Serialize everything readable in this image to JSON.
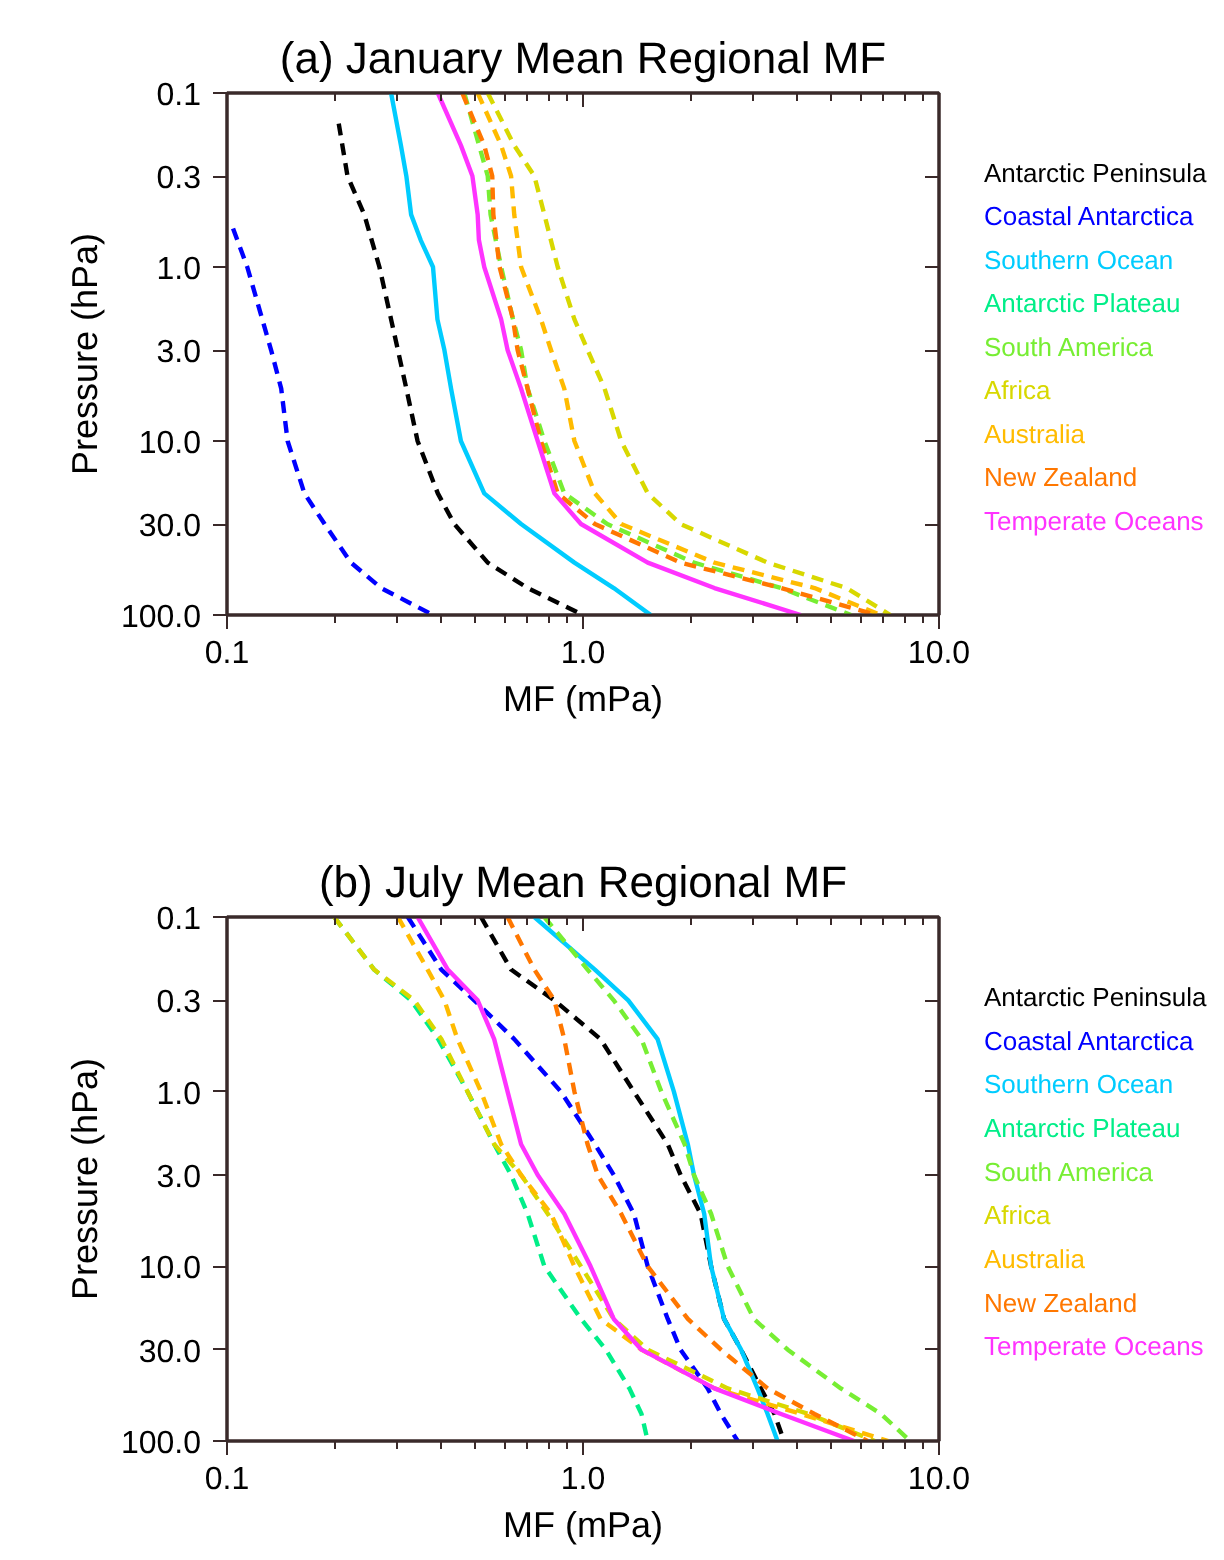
{
  "chart_data": [
    {
      "type": "line",
      "title": "(a) January Mean Regional MF",
      "xlabel": "MF (mPa)",
      "ylabel": "Pressure (hPa)",
      "log": "xy",
      "grid": false,
      "tick_labels": "xy",
      "xlim": [
        0.1,
        10
      ],
      "ylim": [
        100,
        0.1
      ],
      "xticks": [
        {
          "value": 0.1,
          "label": "0.1"
        },
        {
          "value": 1,
          "label": "1.0"
        },
        {
          "value": 10,
          "label": "10.0"
        }
      ],
      "yticks": [
        {
          "value": 0.1,
          "label": "0.1"
        },
        {
          "value": 0.3,
          "label": "0.3"
        },
        {
          "value": 1,
          "label": "1.0"
        },
        {
          "value": 3,
          "label": "3.0"
        },
        {
          "value": 10,
          "label": "10.0"
        },
        {
          "value": 30,
          "label": "30.0"
        },
        {
          "value": 100,
          "label": "100.0"
        }
      ],
      "series": [
        {
          "name": "Antarctic Peninsula",
          "color": "#000000",
          "line_style": "dashed",
          "x": [
            0.206,
            0.218,
            0.243,
            0.268,
            0.289,
            0.302,
            0.319,
            0.343,
            0.391,
            0.435,
            0.54,
            0.699,
            1.0
          ],
          "values": [
            0.15,
            0.3,
            0.5,
            1,
            2,
            3,
            5,
            10,
            20,
            30,
            50,
            70,
            100
          ]
        },
        {
          "name": "Coastal Antarctica",
          "color": "#0000ff",
          "line_style": "dashed",
          "x": [
            0.104,
            0.114,
            0.133,
            0.142,
            0.148,
            0.165,
            0.188,
            0.223,
            0.271,
            0.379
          ],
          "values": [
            0.6,
            1,
            3,
            5,
            10,
            20,
            30,
            50,
            70,
            100
          ]
        },
        {
          "name": "Southern Ocean",
          "color": "#00ccff",
          "line_style": "solid",
          "x": [
            0.289,
            0.308,
            0.319,
            0.329,
            0.35,
            0.379,
            0.39,
            0.408,
            0.426,
            0.454,
            0.528,
            0.67,
            0.946,
            1.22,
            1.55
          ],
          "values": [
            0.1,
            0.2,
            0.3,
            0.5,
            0.7,
            1,
            2,
            3,
            5,
            10,
            20,
            30,
            50,
            70,
            100
          ]
        },
        {
          "name": "Antarctic Plateau",
          "color": "#00ee88",
          "line_style": "dashed"
        },
        {
          "name": "South America",
          "color": "#77ee33",
          "line_style": "dashed",
          "x": [
            0.464,
            0.54,
            0.55,
            0.589,
            0.636,
            0.67,
            0.699,
            0.779,
            0.886,
            1.17,
            2.05,
            3.6,
            5.66
          ],
          "values": [
            0.1,
            0.3,
            0.5,
            1,
            2,
            3,
            5,
            10,
            20,
            30,
            50,
            70,
            100
          ]
        },
        {
          "name": "Africa",
          "color": "#d8d800",
          "line_style": "dashed",
          "x": [
            0.54,
            0.641,
            0.73,
            0.779,
            0.849,
            0.946,
            1.03,
            1.15,
            1.28,
            1.52,
            1.88,
            3.3,
            5.5,
            7.3
          ],
          "values": [
            0.1,
            0.2,
            0.3,
            0.5,
            1,
            2,
            3,
            5,
            10,
            20,
            30,
            50,
            70,
            100
          ]
        },
        {
          "name": "Australia",
          "color": "#ffbb00",
          "line_style": "dashed",
          "x": [
            0.506,
            0.589,
            0.628,
            0.641,
            0.67,
            0.762,
            0.813,
            0.886,
            0.946,
            1.08,
            1.28,
            2.34,
            4.47,
            6.87
          ],
          "values": [
            0.1,
            0.2,
            0.3,
            0.5,
            1,
            2,
            3,
            5,
            10,
            20,
            30,
            50,
            70,
            100
          ]
        },
        {
          "name": "New Zealand",
          "color": "#ff7700",
          "line_style": "dashed",
          "x": [
            0.458,
            0.528,
            0.556,
            0.56,
            0.583,
            0.636,
            0.655,
            0.699,
            0.762,
            0.849,
            1.08,
            1.88,
            3.6,
            6.7
          ],
          "values": [
            0.1,
            0.2,
            0.3,
            0.5,
            1,
            2,
            3,
            5,
            10,
            20,
            30,
            50,
            70,
            100
          ]
        },
        {
          "name": "Temperate Oceans",
          "color": "#ff33ff",
          "line_style": "solid",
          "x": [
            0.391,
            0.454,
            0.489,
            0.506,
            0.51,
            0.528,
            0.589,
            0.614,
            0.67,
            0.746,
            0.831,
            0.987,
            1.52,
            2.34,
            4.09
          ],
          "values": [
            0.1,
            0.2,
            0.3,
            0.5,
            0.7,
            1,
            2,
            3,
            5,
            10,
            20,
            30,
            50,
            70,
            100
          ]
        }
      ]
    },
    {
      "type": "line",
      "title": "(b) July Mean Regional MF",
      "xlabel": "MF (mPa)",
      "ylabel": "Pressure (hPa)",
      "log": "xy",
      "grid": false,
      "tick_labels": "xy",
      "xlim": [
        0.1,
        10
      ],
      "ylim": [
        100,
        0.1
      ],
      "xticks": [
        {
          "value": 0.1,
          "label": "0.1"
        },
        {
          "value": 1,
          "label": "1.0"
        },
        {
          "value": 10,
          "label": "10.0"
        }
      ],
      "yticks": [
        {
          "value": 0.1,
          "label": "0.1"
        },
        {
          "value": 0.3,
          "label": "0.3"
        },
        {
          "value": 1,
          "label": "1.0"
        },
        {
          "value": 3,
          "label": "3.0"
        },
        {
          "value": 10,
          "label": "10.0"
        },
        {
          "value": 30,
          "label": "30.0"
        },
        {
          "value": 100,
          "label": "100.0"
        }
      ],
      "series": [
        {
          "name": "Antarctic Peninsula",
          "color": "#000000",
          "line_style": "dashed",
          "x": [
            0.517,
            0.628,
            0.831,
            1.12,
            1.39,
            1.73,
            1.88,
            2.14,
            2.29,
            2.49,
            2.78,
            3.16,
            3.45,
            3.67
          ],
          "values": [
            0.1,
            0.2,
            0.3,
            0.5,
            1,
            2,
            3,
            5,
            10,
            20,
            30,
            50,
            70,
            100
          ]
        },
        {
          "name": "Coastal Antarctica",
          "color": "#0000ff",
          "line_style": "dashed",
          "x": [
            0.322,
            0.4,
            0.495,
            0.641,
            0.867,
            1.08,
            1.22,
            1.39,
            1.52,
            1.73,
            1.88,
            2.24,
            2.44,
            2.72
          ],
          "values": [
            0.1,
            0.2,
            0.3,
            0.5,
            1,
            2,
            3,
            5,
            10,
            20,
            30,
            50,
            70,
            100
          ]
        },
        {
          "name": "Southern Ocean",
          "color": "#00ccff",
          "line_style": "solid",
          "x": [
            0.73,
            1.08,
            1.34,
            1.62,
            1.8,
            1.97,
            2.05,
            2.19,
            2.29,
            2.49,
            2.78,
            3.09,
            3.3,
            3.52
          ],
          "values": [
            0.1,
            0.2,
            0.3,
            0.5,
            1,
            2,
            3,
            5,
            10,
            20,
            30,
            50,
            70,
            100
          ]
        },
        {
          "name": "Antarctic Plateau",
          "color": "#00ee88",
          "line_style": "dashed",
          "x": [
            0.2,
            0.259,
            0.329,
            0.392,
            0.474,
            0.563,
            0.628,
            0.699,
            0.779,
            0.987,
            1.16,
            1.35,
            1.46,
            1.52
          ],
          "values": [
            0.1,
            0.2,
            0.3,
            0.5,
            1,
            2,
            3,
            5,
            10,
            20,
            30,
            50,
            70,
            100
          ]
        },
        {
          "name": "South America",
          "color": "#77ee33",
          "line_style": "dashed",
          "x": [
            0.779,
            1.03,
            1.22,
            1.46,
            1.66,
            1.93,
            2.05,
            2.29,
            2.55,
            3.02,
            3.76,
            5.3,
            6.87,
            8.3
          ],
          "values": [
            0.1,
            0.2,
            0.3,
            0.5,
            1,
            2,
            3,
            5,
            10,
            20,
            30,
            50,
            70,
            100
          ]
        },
        {
          "name": "Africa",
          "color": "#d8d800",
          "line_style": "dashed",
          "x": [
            0.2,
            0.259,
            0.336,
            0.4,
            0.474,
            0.563,
            0.67,
            0.796,
            0.987,
            1.22,
            1.52,
            2.55,
            4.3,
            6.6
          ],
          "values": [
            0.1,
            0.2,
            0.3,
            0.5,
            1,
            2,
            3,
            5,
            10,
            20,
            30,
            50,
            70,
            100
          ]
        },
        {
          "name": "Australia",
          "color": "#ffbb00",
          "line_style": "dashed",
          "x": [
            0.302,
            0.366,
            0.408,
            0.444,
            0.517,
            0.589,
            0.67,
            0.813,
            0.946,
            1.12,
            1.46,
            2.34,
            4.1,
            7.2
          ],
          "values": [
            0.1,
            0.2,
            0.3,
            0.5,
            1,
            2,
            3,
            5,
            10,
            20,
            30,
            50,
            70,
            100
          ]
        },
        {
          "name": "New Zealand",
          "color": "#ff7700",
          "line_style": "dashed",
          "x": [
            0.614,
            0.73,
            0.831,
            0.886,
            0.946,
            1.03,
            1.1,
            1.28,
            1.52,
            1.97,
            2.44,
            3.3,
            4.47,
            6.3
          ],
          "values": [
            0.1,
            0.2,
            0.3,
            0.5,
            1,
            2,
            3,
            5,
            10,
            20,
            30,
            50,
            70,
            100
          ]
        },
        {
          "name": "Temperate Oceans",
          "color": "#ff33ff",
          "line_style": "solid",
          "x": [
            0.343,
            0.417,
            0.506,
            0.563,
            0.614,
            0.67,
            0.746,
            0.886,
            1.05,
            1.22,
            1.46,
            2.34,
            3.6,
            5.77
          ],
          "values": [
            0.1,
            0.2,
            0.3,
            0.5,
            1,
            2,
            3,
            5,
            10,
            20,
            30,
            50,
            70,
            100
          ]
        }
      ]
    }
  ]
}
